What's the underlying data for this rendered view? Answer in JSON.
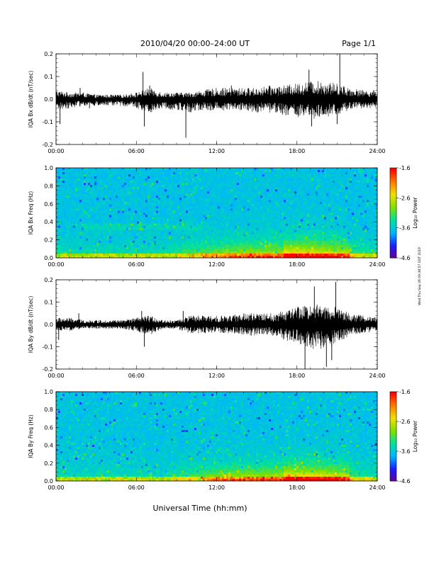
{
  "header": {
    "title": "2010/04/20  00:00–24:00 UT",
    "page_label": "Page 1/1"
  },
  "footer": {
    "xlabel": "Universal Time (hh:mm)"
  },
  "side_stamp": "Wed Thu Sep 26 09:38:57 EDT 2019",
  "colors": {
    "trace": "#000000",
    "spectrogram_background": "#1f3fd6",
    "colormap": [
      "#6a0088",
      "#1a1aff",
      "#00b4ff",
      "#00e0a0",
      "#7ee000",
      "#f0e000",
      "#ff7a00",
      "#ff0000"
    ]
  },
  "chart_data": [
    {
      "type": "line",
      "name": "bx-dbdt",
      "ylabel": "IQA Bx dB/dt (nT/sec)",
      "ylim": [
        -0.2,
        0.2
      ],
      "yticks": [
        "0.2",
        "0.1",
        "0.0",
        "-0.1",
        "-0.2"
      ],
      "yticks_values": [
        0.2,
        0.1,
        0.0,
        -0.1,
        -0.2
      ],
      "xlim": [
        0,
        24
      ],
      "xticks": [
        "00:00",
        "06:00",
        "12:00",
        "18:00",
        "24:00"
      ],
      "xticks_values": [
        0,
        6,
        12,
        18,
        24
      ],
      "envelope": {
        "hours": [
          0,
          1,
          2,
          3,
          4,
          5,
          6,
          7,
          8,
          9,
          10,
          11,
          12,
          13,
          14,
          15,
          16,
          17,
          18,
          19,
          20,
          21,
          22,
          23,
          24
        ],
        "upper": [
          0.04,
          0.03,
          0.03,
          0.02,
          0.02,
          0.02,
          0.03,
          0.05,
          0.03,
          0.03,
          0.03,
          0.04,
          0.05,
          0.05,
          0.05,
          0.05,
          0.06,
          0.06,
          0.07,
          0.08,
          0.08,
          0.07,
          0.05,
          0.04,
          0.04
        ],
        "lower": [
          -0.05,
          -0.04,
          -0.03,
          -0.03,
          -0.03,
          -0.03,
          -0.04,
          -0.06,
          -0.04,
          -0.05,
          -0.06,
          -0.05,
          -0.05,
          -0.05,
          -0.05,
          -0.06,
          -0.06,
          -0.07,
          -0.08,
          -0.09,
          -0.09,
          -0.07,
          -0.05,
          -0.04,
          -0.04
        ]
      },
      "spikes": [
        {
          "hour": 0.3,
          "value": -0.11
        },
        {
          "hour": 1.8,
          "value": 0.05
        },
        {
          "hour": 2.5,
          "value": -0.04
        },
        {
          "hour": 6.5,
          "value": 0.12
        },
        {
          "hour": 6.6,
          "value": -0.12
        },
        {
          "hour": 7.0,
          "value": 0.06
        },
        {
          "hour": 9.7,
          "value": -0.17
        },
        {
          "hour": 13.1,
          "value": 0.06
        },
        {
          "hour": 18.9,
          "value": 0.13
        },
        {
          "hour": 19.1,
          "value": -0.12
        },
        {
          "hour": 21.2,
          "value": 0.2
        },
        {
          "hour": 21.0,
          "value": -0.11
        }
      ]
    },
    {
      "type": "heatmap",
      "name": "bx-spectrogram",
      "ylabel": "IQA Bx Freq (Hz)",
      "ylim": [
        0.0,
        1.0
      ],
      "yticks": [
        "1.0",
        "0.8",
        "0.6",
        "0.4",
        "0.2",
        "0.0"
      ],
      "yticks_values": [
        1.0,
        0.8,
        0.6,
        0.4,
        0.2,
        0.0
      ],
      "xlim": [
        0,
        24
      ],
      "xticks": [
        "00:00",
        "06:00",
        "12:00",
        "18:00",
        "24:00"
      ],
      "xticks_values": [
        0,
        6,
        12,
        18,
        24
      ],
      "colorbar": {
        "label": "Log₁₀ Power",
        "range": [
          -4.6,
          -1.6
        ],
        "ticks": [
          "-1.6",
          "-2.6",
          "-3.6",
          "-4.6"
        ],
        "ticks_values": [
          -1.6,
          -2.6,
          -3.6,
          -4.6
        ]
      }
    },
    {
      "type": "line",
      "name": "by-dbdt",
      "ylabel": "IQA By dB/dt (nT/sec)",
      "ylim": [
        -0.2,
        0.2
      ],
      "yticks": [
        "0.2",
        "0.1",
        "0.0",
        "-0.1",
        "-0.2"
      ],
      "yticks_values": [
        0.2,
        0.1,
        0.0,
        -0.1,
        -0.2
      ],
      "xlim": [
        0,
        24
      ],
      "xticks": [
        "00:00",
        "06:00",
        "12:00",
        "18:00",
        "24:00"
      ],
      "xticks_values": [
        0,
        6,
        12,
        18,
        24
      ],
      "envelope": {
        "hours": [
          0,
          1,
          2,
          3,
          4,
          5,
          6,
          7,
          8,
          9,
          10,
          11,
          12,
          13,
          14,
          15,
          16,
          17,
          18,
          19,
          20,
          21,
          22,
          23,
          24
        ],
        "upper": [
          0.03,
          0.03,
          0.02,
          0.02,
          0.02,
          0.02,
          0.03,
          0.04,
          0.02,
          0.02,
          0.04,
          0.04,
          0.04,
          0.04,
          0.05,
          0.05,
          0.05,
          0.06,
          0.08,
          0.09,
          0.09,
          0.08,
          0.05,
          0.04,
          0.03
        ],
        "lower": [
          -0.03,
          -0.03,
          -0.02,
          -0.02,
          -0.02,
          -0.02,
          -0.03,
          -0.05,
          -0.02,
          -0.02,
          -0.04,
          -0.04,
          -0.04,
          -0.04,
          -0.05,
          -0.05,
          -0.05,
          -0.07,
          -0.09,
          -0.11,
          -0.11,
          -0.09,
          -0.05,
          -0.04,
          -0.03
        ]
      },
      "spikes": [
        {
          "hour": 0.2,
          "value": -0.07
        },
        {
          "hour": 1.7,
          "value": 0.05
        },
        {
          "hour": 6.4,
          "value": 0.06
        },
        {
          "hour": 6.6,
          "value": -0.1
        },
        {
          "hour": 9.5,
          "value": 0.06
        },
        {
          "hour": 18.6,
          "value": -0.2
        },
        {
          "hour": 19.3,
          "value": 0.17
        },
        {
          "hour": 20.2,
          "value": -0.19
        },
        {
          "hour": 20.9,
          "value": 0.19
        },
        {
          "hour": 20.6,
          "value": -0.16
        }
      ]
    },
    {
      "type": "heatmap",
      "name": "by-spectrogram",
      "ylabel": "IQA By Freq (Hz)",
      "ylim": [
        0.0,
        1.0
      ],
      "yticks": [
        "1.0",
        "0.8",
        "0.6",
        "0.4",
        "0.2",
        "0.0"
      ],
      "yticks_values": [
        1.0,
        0.8,
        0.6,
        0.4,
        0.2,
        0.0
      ],
      "xlim": [
        0,
        24
      ],
      "xticks": [
        "00:00",
        "06:00",
        "12:00",
        "18:00",
        "24:00"
      ],
      "xticks_values": [
        0,
        6,
        12,
        18,
        24
      ],
      "colorbar": {
        "label": "Log₁₀ Power",
        "range": [
          -4.6,
          -1.6
        ],
        "ticks": [
          "-1.6",
          "-2.6",
          "-3.6",
          "-4.6"
        ],
        "ticks_values": [
          -1.6,
          -2.6,
          -3.6,
          -4.6
        ]
      }
    }
  ]
}
